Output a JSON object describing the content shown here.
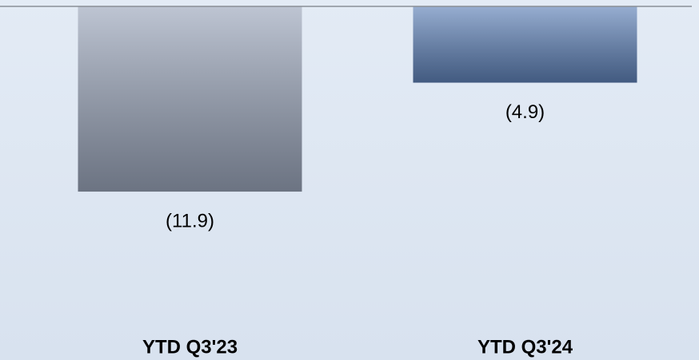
{
  "chart_data": {
    "type": "bar",
    "categories": [
      "YTD Q3'23",
      "YTD Q3'24"
    ],
    "values": [
      -11.9,
      -4.9
    ],
    "value_labels": [
      "(11.9)",
      "(4.9)"
    ],
    "colors": [
      "#9aa5ba",
      "#5f82b8"
    ],
    "ylim": [
      -22,
      0
    ]
  }
}
